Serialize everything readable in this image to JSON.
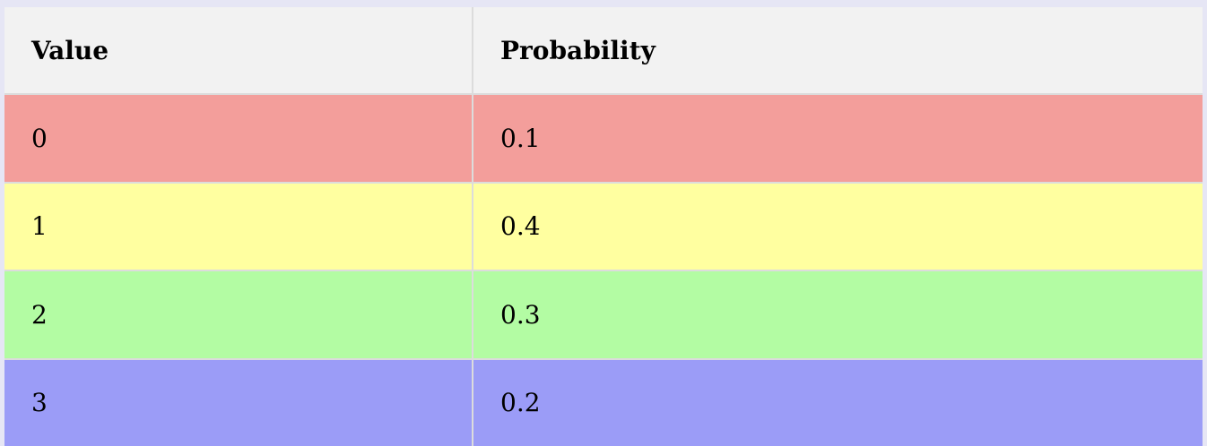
{
  "table": {
    "headers": [
      "Value",
      "Probability"
    ],
    "rows": [
      {
        "value": "0",
        "probability": "0.1",
        "color": "#f39e9b"
      },
      {
        "value": "1",
        "probability": "0.4",
        "color": "#ffffa0"
      },
      {
        "value": "2",
        "probability": "0.3",
        "color": "#b3fca3"
      },
      {
        "value": "3",
        "probability": "0.2",
        "color": "#9b9cf7"
      }
    ]
  }
}
